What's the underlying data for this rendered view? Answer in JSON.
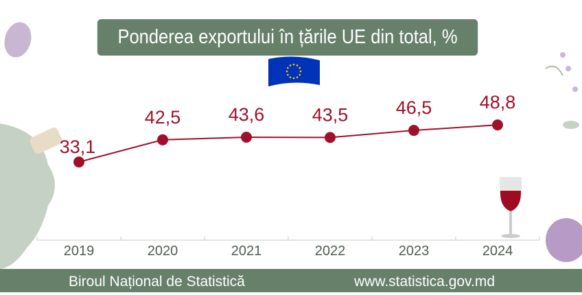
{
  "chart_data": {
    "type": "line",
    "title": "Ponderea exportului în țările UE din total, %",
    "categories": [
      "2019",
      "2020",
      "2021",
      "2022",
      "2023",
      "2024"
    ],
    "values": [
      33.1,
      42.5,
      43.6,
      43.5,
      46.5,
      48.8
    ],
    "value_labels": [
      "33,1",
      "42,5",
      "43,6",
      "43,5",
      "46,5",
      "48,8"
    ],
    "xlabel": "",
    "ylabel": "",
    "ylim": [
      0,
      100
    ],
    "grid": false,
    "line_color": "#a0102a",
    "axis_text_color": "#4d5e50"
  },
  "header_color": "#67806a",
  "flag_icon": "eu-flag-icon",
  "footer": {
    "organization": "Biroul Național de Statistică",
    "website": "www.statistica.gov.md"
  }
}
